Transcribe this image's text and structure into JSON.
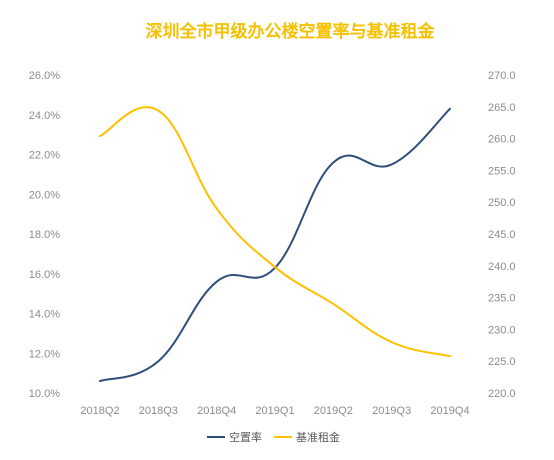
{
  "chart_data": {
    "type": "line",
    "title": "深圳全市甲级办公楼空置率与基准租金",
    "categories": [
      "2018Q2",
      "2018Q3",
      "2018Q4",
      "2019Q1",
      "2019Q2",
      "2019Q3",
      "2019Q4"
    ],
    "series": [
      {
        "name": "空置率",
        "axis": "left",
        "color": "#2e4f79",
        "values": [
          10.6,
          11.6,
          15.6,
          16.3,
          21.6,
          21.5,
          24.3
        ]
      },
      {
        "name": "基准租金",
        "axis": "right",
        "color": "#ffc000",
        "values": [
          260.4,
          264.4,
          249.0,
          239.8,
          234.0,
          228.0,
          225.8
        ]
      }
    ],
    "y_left": {
      "min": 10.0,
      "max": 26.0,
      "ticks": [
        "10.0%",
        "12.0%",
        "14.0%",
        "16.0%",
        "18.0%",
        "20.0%",
        "22.0%",
        "24.0%",
        "26.0%"
      ]
    },
    "y_right": {
      "min": 220.0,
      "max": 270.0,
      "ticks": [
        "220.0",
        "225.0",
        "230.0",
        "235.0",
        "240.0",
        "245.0",
        "250.0",
        "255.0",
        "260.0",
        "265.0",
        "270.0"
      ]
    },
    "grid": false,
    "legend_position": "bottom"
  }
}
